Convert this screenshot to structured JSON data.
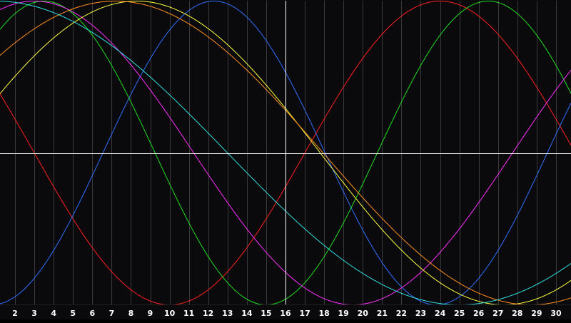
{
  "chart_data": {
    "type": "line",
    "title": "",
    "xlabel": "",
    "ylabel": "",
    "xlim": [
      1,
      31
    ],
    "ylim": [
      -1,
      1
    ],
    "grid": "vertical",
    "legend": "none",
    "background_color": "#0a090c",
    "grid_color": "#3a3a3a",
    "axis_color": "#ffffff",
    "tick_label_color": "#ffffff",
    "x_ticks": [
      "2",
      "3",
      "4",
      "5",
      "6",
      "7",
      "8",
      "9",
      "10",
      "11",
      "12",
      "13",
      "14",
      "15",
      "16",
      "17",
      "18",
      "19",
      "20",
      "21",
      "22",
      "23",
      "24",
      "25",
      "26",
      "27",
      "28",
      "29",
      "30"
    ],
    "x_tick_values": [
      2,
      3,
      4,
      5,
      6,
      7,
      8,
      9,
      10,
      11,
      12,
      13,
      14,
      15,
      16,
      17,
      18,
      19,
      20,
      21,
      22,
      23,
      24,
      25,
      26,
      27,
      28,
      29,
      30
    ],
    "axis_crossing": {
      "x": 16,
      "y": 0
    },
    "series": [
      {
        "color": "#ff2020",
        "period": 28,
        "peak_day": 24.0
      },
      {
        "color": "#3070ff",
        "period": 23,
        "peak_day": 12.3
      },
      {
        "color": "#20e020",
        "period": 23,
        "peak_day": 3.5
      },
      {
        "color": "#ff30ff",
        "period": 33,
        "peak_day": 3.0
      },
      {
        "color": "#ffff40",
        "period": 38,
        "peak_day": 8.3
      },
      {
        "color": "#ff9020",
        "period": 43,
        "peak_day": 7.2
      },
      {
        "color": "#30e0e0",
        "period": 48,
        "peak_day": 1.0
      }
    ]
  }
}
